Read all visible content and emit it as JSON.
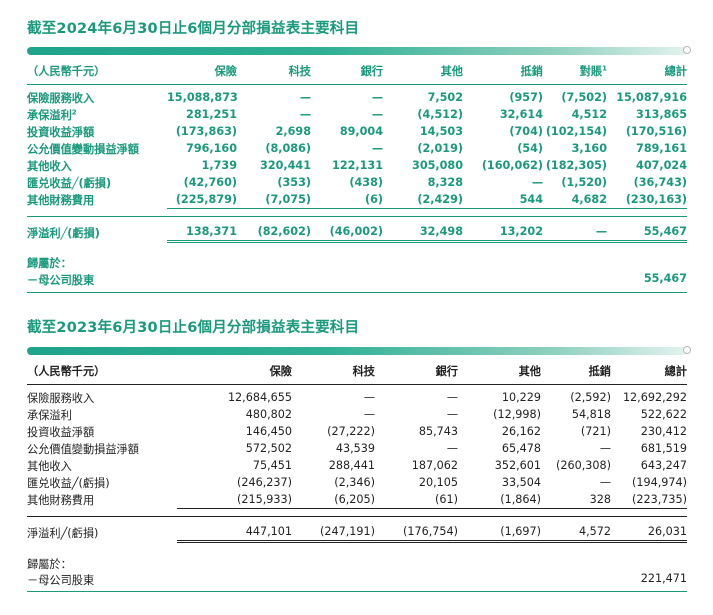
{
  "s2024": {
    "title": "截至2024年6月30日止6個月分部損益表主要科目",
    "headers": [
      "（人民幣千元）",
      "保險",
      "科技",
      "銀行",
      "其他",
      "抵銷",
      "對賬",
      "總計"
    ],
    "header_sup": "1",
    "rows": [
      {
        "label": "保險服務收入",
        "sup": "",
        "vals": [
          "15,088,873",
          "—",
          "—",
          "7,502",
          "(957)",
          "(7,502)",
          "15,087,916"
        ]
      },
      {
        "label": "承保溢利",
        "sup": "2",
        "vals": [
          "281,251",
          "—",
          "—",
          "(4,512)",
          "32,614",
          "4,512",
          "313,865"
        ]
      },
      {
        "label": "投資收益淨額",
        "sup": "",
        "vals": [
          "(173,863)",
          "2,698",
          "89,004",
          "14,503",
          "(704)",
          "(102,154)",
          "(170,516)"
        ]
      },
      {
        "label": "公允價值變動損益淨額",
        "sup": "",
        "vals": [
          "796,160",
          "(8,086)",
          "—",
          "(2,019)",
          "(54)",
          "3,160",
          "789,161"
        ]
      },
      {
        "label": "其他收入",
        "sup": "",
        "vals": [
          "1,739",
          "320,441",
          "122,131",
          "305,080",
          "(160,062)",
          "(182,305)",
          "407,024"
        ]
      },
      {
        "label": "匯兑收益╱(虧損)",
        "sup": "",
        "vals": [
          "(42,760)",
          "(353)",
          "(438)",
          "8,328",
          "—",
          "(1,520)",
          "(36,743)"
        ]
      },
      {
        "label": "其他財務費用",
        "sup": "",
        "vals": [
          "(225,879)",
          "(7,075)",
          "(6)",
          "(2,429)",
          "544",
          "4,682",
          "(230,163)"
        ]
      }
    ],
    "net": {
      "label": "淨溢利╱(虧損)",
      "vals": [
        "138,371",
        "(82,602)",
        "(46,002)",
        "32,498",
        "13,202",
        "—",
        "55,467"
      ]
    },
    "attrib_label": "歸屬於：",
    "parent": {
      "label": "－母公司股東",
      "total": "55,467"
    }
  },
  "s2023": {
    "title": "截至2023年6月30日止6個月分部損益表主要科目",
    "headers": [
      "（人民幣千元）",
      "保險",
      "科技",
      "銀行",
      "其他",
      "抵銷",
      "總計"
    ],
    "rows": [
      {
        "label": "保險服務收入",
        "vals": [
          "12,684,655",
          "—",
          "—",
          "10,229",
          "(2,592)",
          "12,692,292"
        ]
      },
      {
        "label": "承保溢利",
        "vals": [
          "480,802",
          "—",
          "—",
          "(12,998)",
          "54,818",
          "522,622"
        ]
      },
      {
        "label": "投資收益淨額",
        "vals": [
          "146,450",
          "(27,222)",
          "85,743",
          "26,162",
          "(721)",
          "230,412"
        ]
      },
      {
        "label": "公允價值變動損益淨額",
        "vals": [
          "572,502",
          "43,539",
          "—",
          "65,478",
          "—",
          "681,519"
        ]
      },
      {
        "label": "其他收入",
        "vals": [
          "75,451",
          "288,441",
          "187,062",
          "352,601",
          "(260,308)",
          "643,247"
        ]
      },
      {
        "label": "匯兑收益╱(虧損)",
        "vals": [
          "(246,237)",
          "(2,346)",
          "20,105",
          "33,504",
          "—",
          "(194,974)"
        ]
      },
      {
        "label": "其他財務費用",
        "vals": [
          "(215,933)",
          "(6,205)",
          "(61)",
          "(1,864)",
          "328",
          "(223,735)"
        ]
      }
    ],
    "net": {
      "label": "淨溢利╱(虧損)",
      "vals": [
        "447,101",
        "(247,191)",
        "(176,754)",
        "(1,697)",
        "4,572",
        "26,031"
      ]
    },
    "attrib_label": "歸屬於：",
    "parent": {
      "label": "－母公司股東",
      "total": "221,471"
    }
  }
}
